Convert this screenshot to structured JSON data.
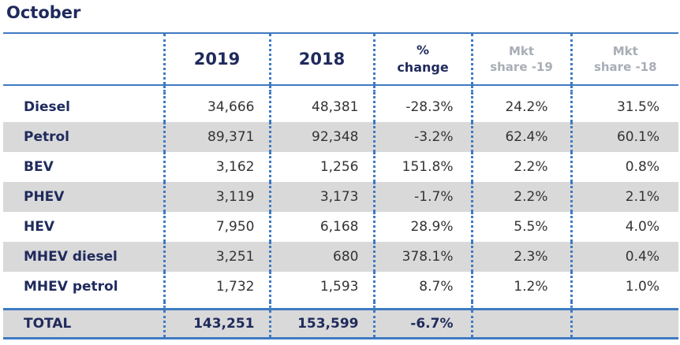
{
  "title": "October",
  "header": {
    "col_2019": "2019",
    "col_2018": "2018",
    "pct_line1": "%",
    "pct_line2": "change",
    "mkt19_line1": "Mkt",
    "mkt19_line2": "share -19",
    "mkt18_line1": "Mkt",
    "mkt18_line2": "share -18"
  },
  "rows": [
    {
      "label": "Diesel",
      "v2019": "34,666",
      "v2018": "48,381",
      "change": "-28.3%",
      "share19": "24.2%",
      "share18": "31.5%"
    },
    {
      "label": "Petrol",
      "v2019": "89,371",
      "v2018": "92,348",
      "change": "-3.2%",
      "share19": "62.4%",
      "share18": "60.1%"
    },
    {
      "label": "BEV",
      "v2019": "3,162",
      "v2018": "1,256",
      "change": "151.8%",
      "share19": "2.2%",
      "share18": "0.8%"
    },
    {
      "label": "PHEV",
      "v2019": "3,119",
      "v2018": "3,173",
      "change": "-1.7%",
      "share19": "2.2%",
      "share18": "2.1%"
    },
    {
      "label": "HEV",
      "v2019": "7,950",
      "v2018": "6,168",
      "change": "28.9%",
      "share19": "5.5%",
      "share18": "4.0%"
    },
    {
      "label": "MHEV diesel",
      "v2019": "3,251",
      "v2018": "680",
      "change": "378.1%",
      "share19": "2.3%",
      "share18": "0.4%"
    },
    {
      "label": "MHEV petrol",
      "v2019": "1,732",
      "v2018": "1,593",
      "change": "8.7%",
      "share19": "1.2%",
      "share18": "1.0%"
    }
  ],
  "total": {
    "label": "TOTAL",
    "v2019": "143,251",
    "v2018": "153,599",
    "change": "-6.7%",
    "share19": "",
    "share18": ""
  },
  "colors": {
    "accent": "#3f7ac2",
    "heading": "#1f2a5c",
    "muted": "#a8adb6",
    "shade": "#d9d9d9"
  }
}
